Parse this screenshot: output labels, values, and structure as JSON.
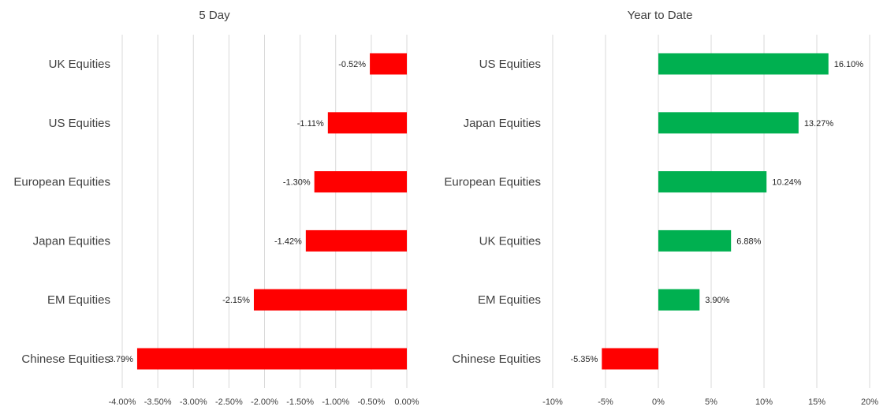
{
  "chart_data": [
    {
      "type": "bar",
      "orientation": "horizontal",
      "title": "5 Day",
      "categories": [
        "UK Equities",
        "US Equities",
        "European Equities",
        "Japan Equities",
        "EM Equities",
        "Chinese Equities"
      ],
      "values": [
        -0.52,
        -1.11,
        -1.3,
        -1.42,
        -2.15,
        -3.79
      ],
      "data_labels": [
        "-0.52%",
        "-1.11%",
        "-1.30%",
        "-1.42%",
        "-2.15%",
        "-3.79%"
      ],
      "xlim": [
        -4.0,
        0.0
      ],
      "xticks": [
        -4.0,
        -3.5,
        -3.0,
        -2.5,
        -2.0,
        -1.5,
        -1.0,
        -0.5,
        0.0
      ],
      "xtick_labels": [
        "-4.00%",
        "-3.50%",
        "-3.00%",
        "-2.50%",
        "-2.00%",
        "-1.50%",
        "-1.00%",
        "-0.50%",
        "0.00%"
      ],
      "grid": "vertical",
      "colors": {
        "negative": "#ff0000",
        "positive": "#00b050"
      }
    },
    {
      "type": "bar",
      "orientation": "horizontal",
      "title": "Year to Date",
      "categories": [
        "US Equities",
        "Japan Equities",
        "European Equities",
        "UK Equities",
        "EM Equities",
        "Chinese Equities"
      ],
      "values": [
        16.1,
        13.27,
        10.24,
        6.88,
        3.9,
        -5.35
      ],
      "data_labels": [
        "16.10%",
        "13.27%",
        "10.24%",
        "6.88%",
        "3.90%",
        "-5.35%"
      ],
      "xlim": [
        -10,
        20
      ],
      "xticks": [
        -10,
        -5,
        0,
        5,
        10,
        15,
        20
      ],
      "xtick_labels": [
        "-10%",
        "-5%",
        "0%",
        "5%",
        "10%",
        "15%",
        "20%"
      ],
      "grid": "vertical",
      "colors": {
        "negative": "#ff0000",
        "positive": "#00b050"
      }
    }
  ]
}
